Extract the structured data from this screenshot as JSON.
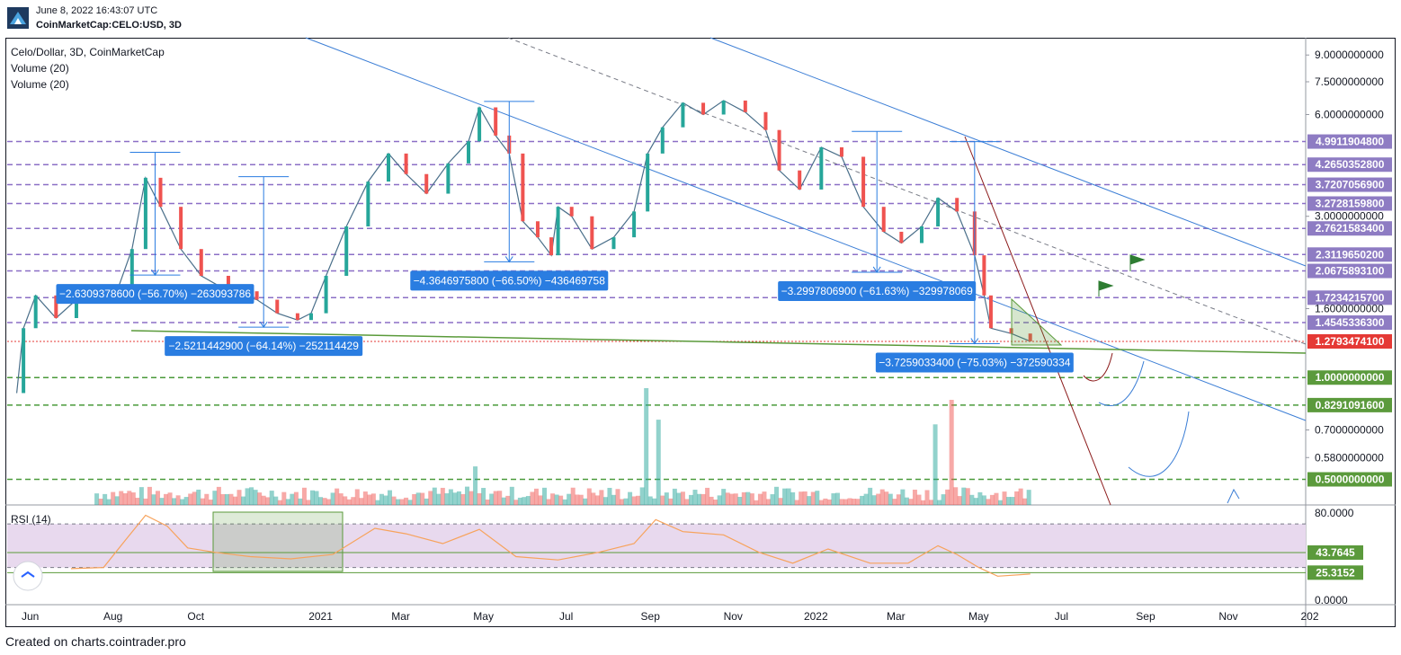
{
  "header": {
    "date": "June 8, 2022 16:43:07 UTC",
    "symbol": "CoinMarketCap:CELO:USD, 3D"
  },
  "legend": {
    "title": "Celo/Dollar, 3D, CoinMarketCap",
    "volume_1": "Volume (20)",
    "volume_2": "Volume (20)",
    "rsi": "RSI (14)"
  },
  "footer": {
    "text": "Created on charts.cointrader.pro"
  },
  "colors": {
    "up": "#26a69a",
    "down": "#ef5350",
    "trendline_blue": "#3d7fd6",
    "support_green": "#5a9a3a",
    "level_purple": "#8b6fc6",
    "level_green": "#4a9a3a",
    "label_blue": "#2a7de1",
    "label_purple": "#8e7cc3",
    "label_green": "#5b9a3c",
    "label_red": "#e53935",
    "rsi_line": "#f7a35c",
    "rsi_band": "#e8d9ee"
  },
  "chart_data": [
    {
      "type": "line",
      "title": "Celo/Dollar, 3D, CoinMarketCap",
      "y_scale": "log",
      "ylim": [
        0.42,
        10.0
      ],
      "xlim": [
        "2020-05-15",
        "2022-12-28"
      ],
      "y_tick_labels": [
        {
          "value": 9.0,
          "label": "9.0000000000"
        },
        {
          "value": 7.5,
          "label": "7.5000000000"
        },
        {
          "value": 6.0,
          "label": "6.0000000000"
        },
        {
          "value": 3.0,
          "label": "3.0000000000"
        },
        {
          "value": 1.6,
          "label": "1.6000000000"
        },
        {
          "value": 0.7,
          "label": "0.7000000000"
        },
        {
          "value": 0.58,
          "label": "0.5800000000"
        }
      ],
      "x_tick_labels": [
        {
          "date": "2020-06-01",
          "label": "Jun"
        },
        {
          "date": "2020-08-01",
          "label": "Aug"
        },
        {
          "date": "2020-10-01",
          "label": "Oct"
        },
        {
          "date": "2021-01-01",
          "label": "2021"
        },
        {
          "date": "2021-03-01",
          "label": "Mar"
        },
        {
          "date": "2021-05-01",
          "label": "May"
        },
        {
          "date": "2021-07-01",
          "label": "Jul"
        },
        {
          "date": "2021-09-01",
          "label": "Sep"
        },
        {
          "date": "2021-11-01",
          "label": "Nov"
        },
        {
          "date": "2022-01-01",
          "label": "2022"
        },
        {
          "date": "2022-03-01",
          "label": "Mar"
        },
        {
          "date": "2022-05-01",
          "label": "May"
        },
        {
          "date": "2022-07-01",
          "label": "Jul"
        },
        {
          "date": "2022-09-01",
          "label": "Sep"
        },
        {
          "date": "2022-11-01",
          "label": "Nov"
        },
        {
          "date": "2022-12-31",
          "label": "202"
        }
      ],
      "price_path": [
        [
          "2020-05-22",
          0.9
        ],
        [
          "2020-05-27",
          1.4
        ],
        [
          "2020-06-05",
          1.75
        ],
        [
          "2020-06-20",
          1.5
        ],
        [
          "2020-07-05",
          1.7
        ],
        [
          "2020-07-20",
          1.8
        ],
        [
          "2020-08-05",
          1.85
        ],
        [
          "2020-08-15",
          2.4
        ],
        [
          "2020-08-25",
          3.9
        ],
        [
          "2020-09-05",
          3.2
        ],
        [
          "2020-09-20",
          2.4
        ],
        [
          "2020-10-05",
          2.0
        ],
        [
          "2020-10-25",
          1.8
        ],
        [
          "2020-11-15",
          1.7
        ],
        [
          "2020-11-30",
          1.55
        ],
        [
          "2020-12-15",
          1.48
        ],
        [
          "2020-12-25",
          1.55
        ],
        [
          "2021-01-05",
          2.0
        ],
        [
          "2021-01-20",
          2.8
        ],
        [
          "2021-02-05",
          3.8
        ],
        [
          "2021-02-20",
          4.6
        ],
        [
          "2021-03-05",
          4.0
        ],
        [
          "2021-03-20",
          3.5
        ],
        [
          "2021-04-05",
          4.3
        ],
        [
          "2021-04-20",
          5.0
        ],
        [
          "2021-04-28",
          6.3
        ],
        [
          "2021-05-10",
          5.2
        ],
        [
          "2021-05-20",
          4.6
        ],
        [
          "2021-05-30",
          2.9
        ],
        [
          "2021-06-10",
          2.6
        ],
        [
          "2021-06-20",
          2.3
        ],
        [
          "2021-06-25",
          3.2
        ],
        [
          "2021-07-05",
          3.0
        ],
        [
          "2021-07-20",
          2.4
        ],
        [
          "2021-08-05",
          2.6
        ],
        [
          "2021-08-20",
          3.1
        ],
        [
          "2021-08-30",
          4.6
        ],
        [
          "2021-09-10",
          5.5
        ],
        [
          "2021-09-25",
          6.5
        ],
        [
          "2021-10-10",
          6.0
        ],
        [
          "2021-10-25",
          6.6
        ],
        [
          "2021-11-10",
          6.1
        ],
        [
          "2021-11-25",
          5.4
        ],
        [
          "2021-12-05",
          4.1
        ],
        [
          "2021-12-20",
          3.6
        ],
        [
          "2022-01-05",
          4.8
        ],
        [
          "2022-01-20",
          4.5
        ],
        [
          "2022-02-05",
          3.2
        ],
        [
          "2022-02-20",
          2.7
        ],
        [
          "2022-03-05",
          2.5
        ],
        [
          "2022-03-20",
          2.8
        ],
        [
          "2022-04-01",
          3.4
        ],
        [
          "2022-04-15",
          3.1
        ],
        [
          "2022-04-28",
          2.3
        ],
        [
          "2022-05-05",
          1.75
        ],
        [
          "2022-05-10",
          1.4
        ],
        [
          "2022-05-25",
          1.35
        ],
        [
          "2022-06-08",
          1.28
        ]
      ],
      "horizontal_levels": [
        {
          "value": 4.99119048,
          "label": "4.9911904800",
          "style": "purple"
        },
        {
          "value": 4.26503528,
          "label": "4.2650352800",
          "style": "purple"
        },
        {
          "value": 3.72070569,
          "label": "3.7207056900",
          "style": "purple"
        },
        {
          "value": 3.27281598,
          "label": "3.2728159800",
          "style": "purple"
        },
        {
          "value": 2.76215834,
          "label": "2.7621583400",
          "style": "purple"
        },
        {
          "value": 2.31196502,
          "label": "2.3119650200",
          "style": "purple"
        },
        {
          "value": 2.06758931,
          "label": "2.0675893100",
          "style": "purple"
        },
        {
          "value": 1.72342157,
          "label": "1.7234215700",
          "style": "purple"
        },
        {
          "value": 1.45453363,
          "label": "1.4545336300",
          "style": "purple"
        },
        {
          "value": 1.27934741,
          "label": "1.2793474100",
          "style": "red"
        },
        {
          "value": 1.0,
          "label": "1.0000000000",
          "style": "green"
        },
        {
          "value": 0.82910916,
          "label": "0.8291091600",
          "style": "green"
        },
        {
          "value": 0.5,
          "label": "0.5000000000",
          "style": "green"
        }
      ],
      "drop_annotations": [
        {
          "label": "−2.6309378600 (−56.70%) −263093786",
          "from": [
            "2020-09-01",
            4.64
          ],
          "to": [
            "2020-09-01",
            2.01
          ]
        },
        {
          "label": "−2.5211442900 (−64.14%) −252114429",
          "from": [
            "2020-11-20",
            3.93
          ],
          "to": [
            "2020-11-20",
            1.41
          ]
        },
        {
          "label": "−4.3646975800 (−66.50%) −436469758",
          "from": [
            "2021-05-20",
            6.56
          ],
          "to": [
            "2021-05-20",
            2.2
          ]
        },
        {
          "label": "−3.2997806900 (−61.63%) −329978069",
          "from": [
            "2022-02-15",
            5.35
          ],
          "to": [
            "2022-02-15",
            2.05
          ]
        },
        {
          "label": "−3.7259033400 (−75.03%) −372590334",
          "from": [
            "2022-04-28",
            4.99
          ],
          "to": [
            "2022-04-28",
            1.26
          ]
        }
      ]
    },
    {
      "type": "bar",
      "title": "Volume (20)",
      "volume_peaks": [
        {
          "date": "2021-08-30",
          "relative": 1.0,
          "color": "up"
        },
        {
          "date": "2022-04-10",
          "relative": 0.9,
          "color": "down"
        },
        {
          "date": "2021-09-08",
          "relative": 0.73,
          "color": "up"
        },
        {
          "date": "2022-03-30",
          "relative": 0.69,
          "color": "up"
        },
        {
          "date": "2021-04-25",
          "relative": 0.33,
          "color": "up"
        }
      ]
    },
    {
      "type": "line",
      "title": "RSI (14)",
      "ylim": [
        0,
        85
      ],
      "y_tick_labels": [
        {
          "value": 80,
          "label": "80.0000"
        },
        {
          "value": 0,
          "label": "0.0000"
        }
      ],
      "levels": [
        {
          "value": 43.7645,
          "label": "43.7645"
        },
        {
          "value": 25.3152,
          "label": "25.3152"
        }
      ],
      "rsi_path": [
        [
          "2020-07-01",
          29
        ],
        [
          "2020-07-25",
          30
        ],
        [
          "2020-08-10",
          55
        ],
        [
          "2020-08-25",
          78
        ],
        [
          "2020-09-10",
          68
        ],
        [
          "2020-09-25",
          48
        ],
        [
          "2020-10-15",
          44
        ],
        [
          "2020-11-10",
          40
        ],
        [
          "2020-12-10",
          38
        ],
        [
          "2021-01-10",
          42
        ],
        [
          "2021-02-10",
          66
        ],
        [
          "2021-03-05",
          61
        ],
        [
          "2021-04-01",
          52
        ],
        [
          "2021-04-28",
          65
        ],
        [
          "2021-05-25",
          40
        ],
        [
          "2021-06-25",
          37
        ],
        [
          "2021-07-25",
          44
        ],
        [
          "2021-08-20",
          52
        ],
        [
          "2021-09-05",
          74
        ],
        [
          "2021-09-25",
          63
        ],
        [
          "2021-10-25",
          60
        ],
        [
          "2021-11-20",
          44
        ],
        [
          "2021-12-15",
          34
        ],
        [
          "2022-01-10",
          47
        ],
        [
          "2022-02-10",
          34
        ],
        [
          "2022-03-10",
          34
        ],
        [
          "2022-04-01",
          50
        ],
        [
          "2022-04-15",
          42
        ],
        [
          "2022-05-01",
          30
        ],
        [
          "2022-05-15",
          22
        ],
        [
          "2022-06-08",
          24
        ]
      ]
    }
  ]
}
